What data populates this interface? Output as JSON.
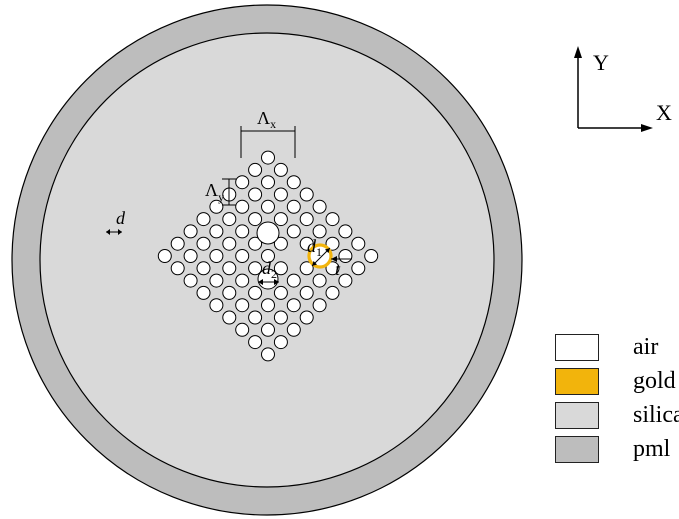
{
  "colors": {
    "air": "#ffffff",
    "gold": "#f2b40c",
    "silica": "#d9d9d9",
    "pml": "#bdbdbd",
    "outline": "#000000"
  },
  "axes": {
    "y_label": "Y",
    "x_label": "X"
  },
  "labels": {
    "lambda_x": "Λ",
    "lambda_x_sub": "x",
    "lambda_y": "Λ",
    "lambda_y_sub": "y",
    "d": "d",
    "d1_main": "d",
    "d1_sub": "1",
    "d2_main": "d",
    "d2_sub": "2",
    "t": "t"
  },
  "legend": [
    {
      "label": "air",
      "color": "#ffffff"
    },
    {
      "label": "gold",
      "color": "#f2b40c"
    },
    {
      "label": "silica",
      "color": "#d9d9d9"
    },
    {
      "label": "pml",
      "color": "#bdbdbd"
    }
  ]
}
